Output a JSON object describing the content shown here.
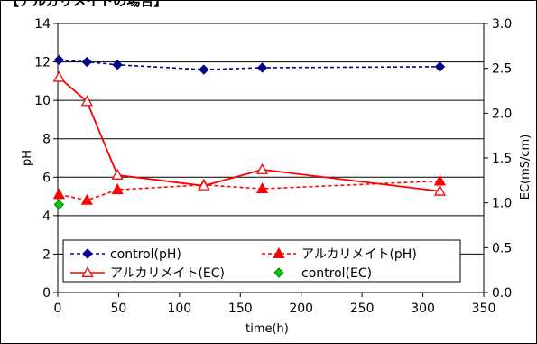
{
  "header_text": "【アルカリメイトの場合】",
  "chart_data": {
    "type": "line",
    "xlabel": "time(h)",
    "ylabel_left": "pH",
    "ylabel_right": "EC(mS/cm)",
    "xlim": [
      0,
      350
    ],
    "ylim_left": [
      0,
      14
    ],
    "ylim_right": [
      0,
      3.0
    ],
    "x_ticks": [
      "0",
      "50",
      "100",
      "150",
      "200",
      "250",
      "300",
      "350"
    ],
    "y_left_ticks": [
      "0",
      "2",
      "4",
      "6",
      "8",
      "10",
      "12",
      "14"
    ],
    "y_right_ticks": [
      "0.0",
      "0.5",
      "1.0",
      "1.5",
      "2.0",
      "2.5",
      "3.0"
    ],
    "grid": true,
    "legend_position": "bottom-left",
    "series": [
      {
        "name": "control(pH)",
        "axis": "left",
        "color": "#00008b",
        "marker": "diamond-filled",
        "line": "dashed",
        "x": [
          1,
          24,
          49,
          120,
          168,
          314
        ],
        "y": [
          12.1,
          12.0,
          11.85,
          11.6,
          11.7,
          11.75
        ]
      },
      {
        "name": "アルカリメイト(pH)",
        "axis": "left",
        "color": "#ff0000",
        "marker": "triangle-filled",
        "line": "dashed",
        "x": [
          1,
          24,
          49,
          120,
          168,
          314
        ],
        "y": [
          5.1,
          4.8,
          5.35,
          5.6,
          5.4,
          5.8
        ]
      },
      {
        "name": "アルカリメイト(EC)",
        "axis": "right",
        "color": "#ff0000",
        "marker": "triangle-open",
        "line": "solid",
        "x": [
          1,
          24,
          49,
          120,
          168,
          314
        ],
        "y": [
          2.4,
          2.13,
          1.31,
          1.19,
          1.37,
          1.13
        ]
      },
      {
        "name": "control(EC)",
        "axis": "right",
        "color": "#00cc00",
        "marker": "diamond-filled",
        "line": "none",
        "x": [
          1
        ],
        "y": [
          0.98
        ]
      }
    ]
  }
}
